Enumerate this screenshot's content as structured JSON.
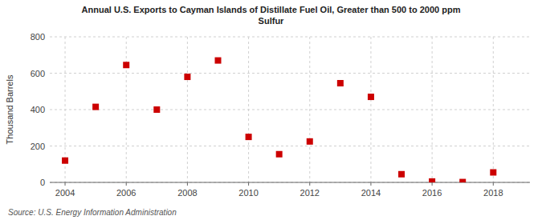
{
  "chart_data": {
    "type": "scatter",
    "title": "Annual U.S. Exports to Cayman Islands of Distillate Fuel Oil, Greater than 500 to 2000 ppm\nSulfur",
    "ylabel": "Thousand Barrels",
    "annotation": "Source: U.S. Energy Information Administration",
    "x": [
      2004,
      2005,
      2006,
      2007,
      2008,
      2009,
      2010,
      2011,
      2012,
      2013,
      2014,
      2015,
      2016,
      2017,
      2018
    ],
    "values": [
      120,
      415,
      645,
      400,
      580,
      670,
      250,
      155,
      225,
      545,
      470,
      45,
      5,
      2,
      55
    ],
    "color": "#cc0000",
    "marker": "square",
    "xlim": [
      2003.5,
      2019.2
    ],
    "xticks": [
      2004,
      2006,
      2008,
      2010,
      2012,
      2014,
      2016,
      2018
    ],
    "ylim": [
      0,
      800
    ],
    "yticks": [
      0,
      200,
      400,
      600,
      800
    ],
    "grid": true
  }
}
